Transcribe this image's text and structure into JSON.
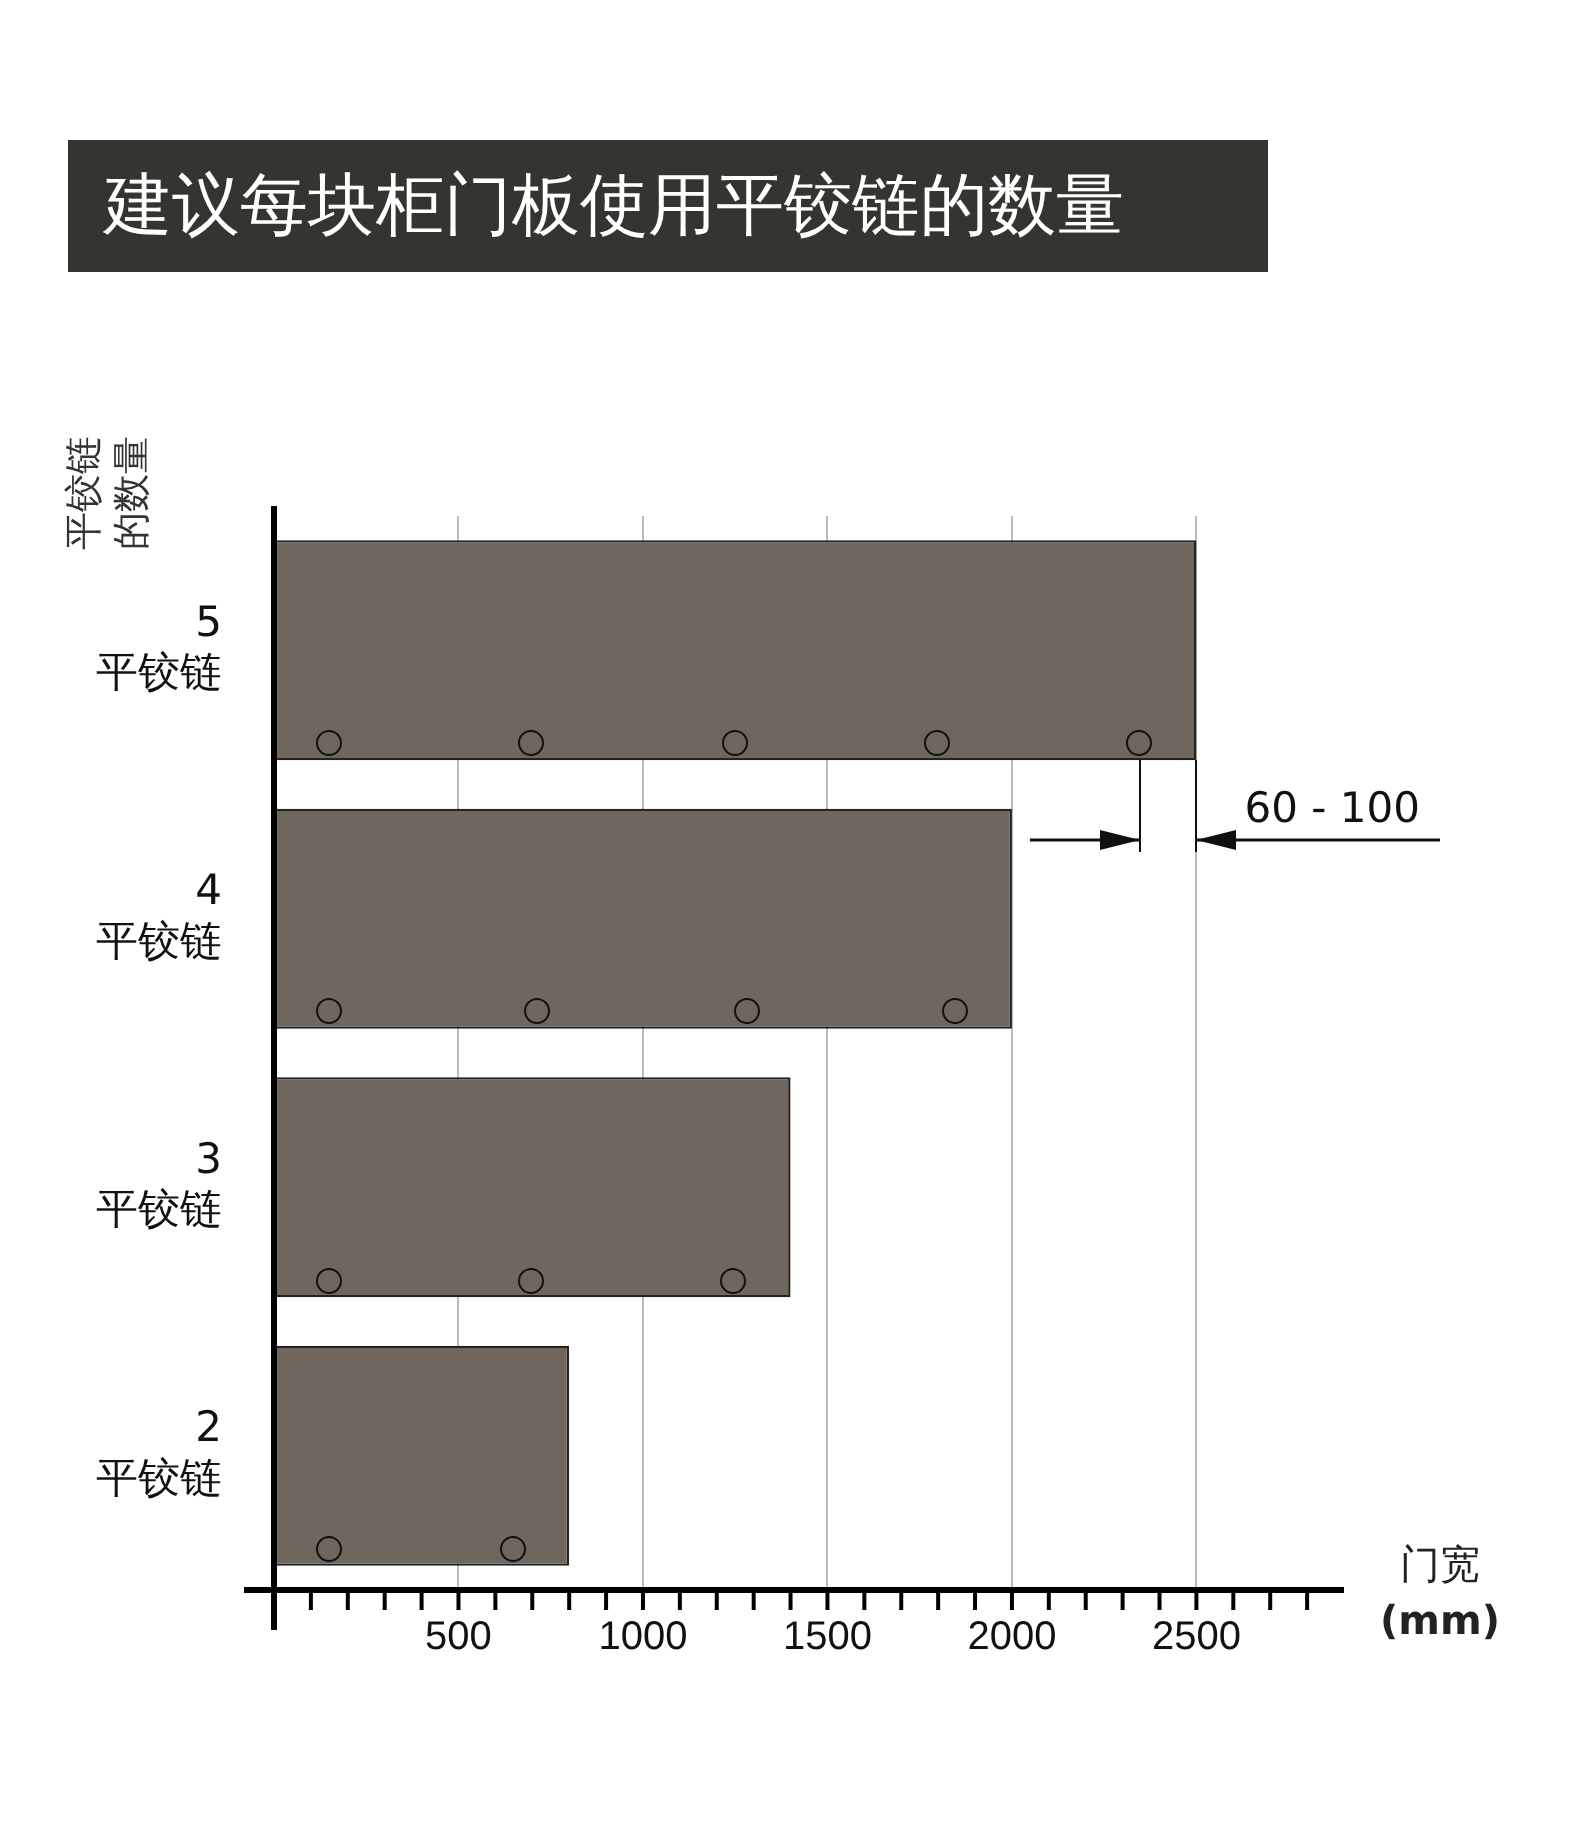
{
  "chart_data": {
    "type": "bar",
    "orientation": "horizontal",
    "title": "建议每块柜门板使用平铰链的数量",
    "ylabel": "平铰链的数量",
    "xlabel": "门宽 (mm)",
    "categories": [
      "5 平铰链",
      "4 平铰链",
      "3 平铰链",
      "2 平铰链"
    ],
    "values": [
      2500,
      2000,
      1400,
      800
    ],
    "color": "#6f675d",
    "xlim": [
      0,
      2900
    ],
    "xticks": [
      {
        "value": 100,
        "label": null
      },
      {
        "value": 200,
        "label": null
      },
      {
        "value": 300,
        "label": null
      },
      {
        "value": 400,
        "label": null
      },
      500,
      {
        "value": 600,
        "label": null
      },
      {
        "value": 700,
        "label": null
      },
      {
        "value": 800,
        "label": null
      },
      {
        "value": 900,
        "label": null
      },
      1000,
      {
        "value": 1100,
        "label": null
      },
      {
        "value": 1200,
        "label": null
      },
      {
        "value": 1300,
        "label": null
      },
      {
        "value": 1400,
        "label": null
      },
      1500,
      {
        "value": 1600,
        "label": null
      },
      {
        "value": 1700,
        "label": null
      },
      {
        "value": 1800,
        "label": null
      },
      {
        "value": 1900,
        "label": null
      },
      2000,
      {
        "value": 2100,
        "label": null
      },
      {
        "value": 2200,
        "label": null
      },
      {
        "value": 2300,
        "label": null
      },
      {
        "value": 2400,
        "label": null
      },
      2500,
      {
        "value": 2600,
        "label": null
      },
      {
        "value": 2700,
        "label": null
      },
      {
        "value": 2800,
        "label": null
      }
    ],
    "grid": "x",
    "legend": false,
    "annotations": [
      "60 - 100"
    ]
  }
}
